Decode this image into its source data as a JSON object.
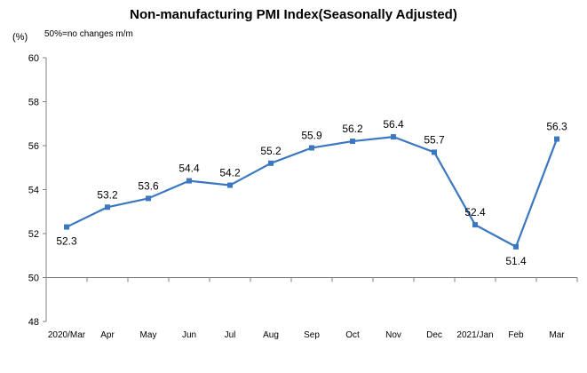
{
  "chart_data": {
    "type": "line",
    "title": "Non-manufacturing PMI Index(Seasonally Adjusted)",
    "ylabel": "(%)",
    "note": "50%=no changes  m/m",
    "categories": [
      "2020/Mar",
      "Apr",
      "May",
      "Jun",
      "Jul",
      "Aug",
      "Sep",
      "Oct",
      "Nov",
      "Dec",
      "2021/Jan",
      "Feb",
      "Mar"
    ],
    "values": [
      52.3,
      53.2,
      53.6,
      54.4,
      54.2,
      55.2,
      55.9,
      56.2,
      56.4,
      55.7,
      52.4,
      51.4,
      56.3
    ],
    "value_labels": [
      "52.3",
      "53.2",
      "53.6",
      "54.4",
      "54.2",
      "55.2",
      "55.9",
      "56.2",
      "56.4",
      "55.7",
      "52.4",
      "51.4",
      "56.3"
    ],
    "yticks": [
      "60",
      "58",
      "56",
      "54",
      "52",
      "50",
      "48"
    ],
    "ylim": [
      48,
      60
    ],
    "baseline": 50,
    "grid": false,
    "colors": {
      "line": "#3b78c0",
      "axis": "#808080"
    }
  }
}
